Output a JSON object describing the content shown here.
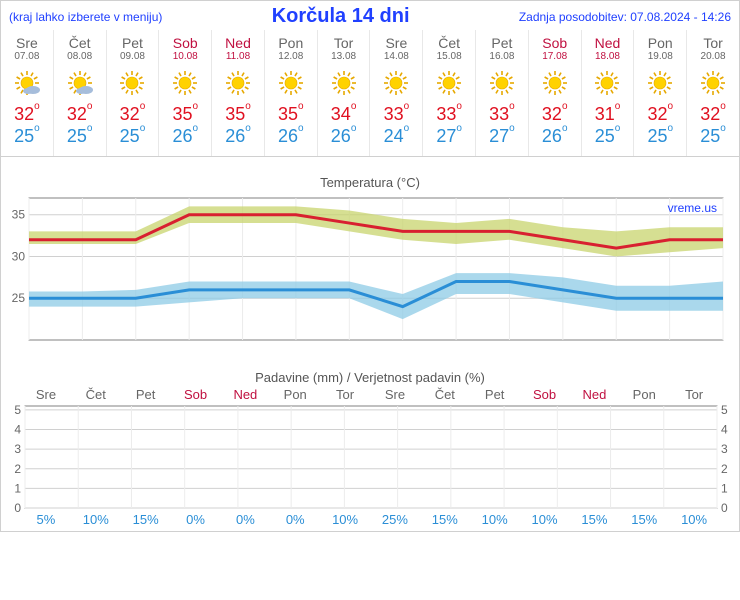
{
  "header": {
    "menu_hint": "(kraj lahko izberete v meniju)",
    "title": "Korčula 14 dni",
    "last_update": "Zadnja posodobitev: 07.08.2024 - 14:26"
  },
  "days": [
    {
      "name": "Sre",
      "date": "07.08",
      "weekend": false,
      "icon": "sun-cloud",
      "hi": 32,
      "lo": 25
    },
    {
      "name": "Čet",
      "date": "08.08",
      "weekend": false,
      "icon": "sun-cloud",
      "hi": 32,
      "lo": 25
    },
    {
      "name": "Pet",
      "date": "09.08",
      "weekend": false,
      "icon": "sun",
      "hi": 32,
      "lo": 25
    },
    {
      "name": "Sob",
      "date": "10.08",
      "weekend": true,
      "icon": "sun",
      "hi": 35,
      "lo": 26
    },
    {
      "name": "Ned",
      "date": "11.08",
      "weekend": true,
      "icon": "sun",
      "hi": 35,
      "lo": 26
    },
    {
      "name": "Pon",
      "date": "12.08",
      "weekend": false,
      "icon": "sun",
      "hi": 35,
      "lo": 26
    },
    {
      "name": "Tor",
      "date": "13.08",
      "weekend": false,
      "icon": "sun",
      "hi": 34,
      "lo": 26
    },
    {
      "name": "Sre",
      "date": "14.08",
      "weekend": false,
      "icon": "sun",
      "hi": 33,
      "lo": 24
    },
    {
      "name": "Čet",
      "date": "15.08",
      "weekend": false,
      "icon": "sun",
      "hi": 33,
      "lo": 27
    },
    {
      "name": "Pet",
      "date": "16.08",
      "weekend": false,
      "icon": "sun",
      "hi": 33,
      "lo": 27
    },
    {
      "name": "Sob",
      "date": "17.08",
      "weekend": true,
      "icon": "sun",
      "hi": 32,
      "lo": 26
    },
    {
      "name": "Ned",
      "date": "18.08",
      "weekend": true,
      "icon": "sun",
      "hi": 31,
      "lo": 25
    },
    {
      "name": "Pon",
      "date": "19.08",
      "weekend": false,
      "icon": "sun",
      "hi": 32,
      "lo": 25
    },
    {
      "name": "Tor",
      "date": "20.08",
      "weekend": false,
      "icon": "sun",
      "hi": 32,
      "lo": 25
    }
  ],
  "temp_chart": {
    "title": "Temperatura (°C)",
    "watermark": "vreme.us",
    "ylim": [
      20,
      37
    ],
    "yticks": [
      25,
      30,
      35
    ],
    "grid_color": "#d0d0d0",
    "frame_color": "#808080",
    "hi_line_color": "#d82030",
    "hi_band_color": "#c8d46e",
    "lo_line_color": "#2a8ed6",
    "lo_band_color": "#8ecbe6",
    "line_width": 3,
    "hi_series": [
      32,
      32,
      32,
      35,
      35,
      35,
      34,
      33,
      33,
      33,
      32,
      31,
      32,
      32
    ],
    "hi_upper": [
      33,
      33,
      33,
      36,
      36,
      36,
      35.5,
      34.5,
      34,
      34.5,
      33.5,
      33,
      33.5,
      33.5
    ],
    "hi_lower": [
      31.5,
      31.5,
      31.5,
      34,
      34,
      34,
      33,
      32,
      31.5,
      32,
      31,
      30,
      30.5,
      31
    ],
    "lo_series": [
      25,
      25,
      25,
      26,
      26,
      26,
      26,
      24,
      27,
      27,
      26,
      25,
      25,
      25
    ],
    "lo_upper": [
      25.8,
      25.8,
      26,
      27,
      27,
      27,
      27,
      25.5,
      28,
      28,
      27.5,
      26.5,
      26.5,
      27
    ],
    "lo_lower": [
      24,
      24,
      24,
      24.5,
      25,
      25,
      25,
      22.5,
      25.5,
      25.5,
      24.5,
      23.5,
      23.5,
      23.5
    ]
  },
  "precip_chart": {
    "title": "Padavine (mm) / Verjetnost padavin (%)",
    "ylim": [
      0,
      5.2
    ],
    "yticks": [
      0,
      1,
      2,
      3,
      4,
      5
    ],
    "grid_color": "#d0d0d0",
    "frame_color": "#808080",
    "pct": [
      "5%",
      "10%",
      "15%",
      "0%",
      "0%",
      "0%",
      "10%",
      "25%",
      "15%",
      "10%",
      "10%",
      "15%",
      "15%",
      "10%"
    ]
  },
  "colors": {
    "link_blue": "#2040ff",
    "hi_text": "#e01020",
    "lo_text": "#2a8ed6",
    "weekend": "#c01040"
  }
}
